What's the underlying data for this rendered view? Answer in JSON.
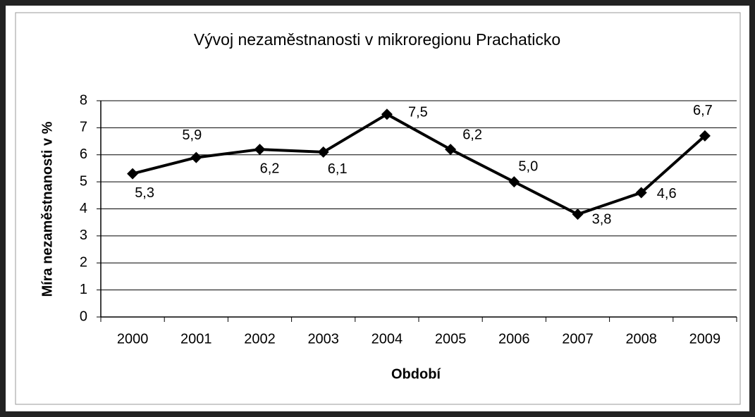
{
  "chart_data": {
    "type": "line",
    "title": "Vývoj nezaměstnanosti  v mikroregionu Prachaticko",
    "x_label": "Období",
    "y_label": "Míra nezaměstnanosti v %",
    "categories": [
      "2000",
      "2001",
      "2002",
      "2003",
      "2004",
      "2005",
      "2006",
      "2007",
      "2008",
      "2009"
    ],
    "series": [
      {
        "name": "Míra nezaměstnanosti",
        "color": "#000000",
        "values": [
          5.3,
          5.9,
          6.2,
          6.1,
          7.5,
          6.2,
          5.0,
          3.8,
          4.6,
          6.7
        ],
        "value_labels": [
          "5,3",
          "5,9",
          "6,2",
          "6,1",
          "7,5",
          "6,2",
          "5,0",
          "3,8",
          "4,6",
          "6,7"
        ]
      }
    ],
    "ylim": [
      0,
      8
    ],
    "yticks": [
      0,
      1,
      2,
      3,
      4,
      5,
      6,
      7,
      8
    ],
    "grid": true
  }
}
